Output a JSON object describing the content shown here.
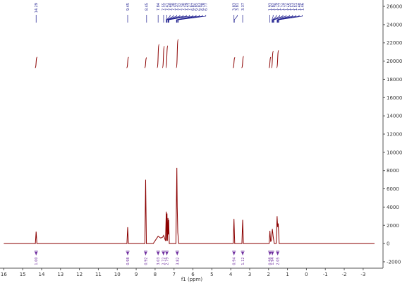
{
  "chart_data": {
    "type": "line",
    "xlabel": "f1 (ppm)",
    "xlim": [
      16.2,
      -4.05
    ],
    "xticks": [
      16,
      15,
      14,
      13,
      12,
      11,
      10,
      9,
      8,
      7,
      6,
      5,
      4,
      3,
      2,
      1,
      0,
      -1,
      -2,
      -3
    ],
    "ylim": [
      -2700,
      26700
    ],
    "yticks": [
      -2000,
      0,
      2000,
      4000,
      6000,
      8000,
      10000,
      12000,
      14000,
      16000,
      18000,
      20000,
      22000,
      24000,
      26000
    ],
    "series": [
      {
        "color": "#8b0000",
        "x": [
          16.0,
          14.33,
          14.29,
          14.25,
          9.49,
          9.45,
          9.41,
          8.54,
          8.5,
          8.46,
          8.1,
          7.84,
          7.7,
          7.6,
          7.55,
          7.45,
          7.41,
          7.39,
          7.37,
          7.35,
          7.32,
          7.3,
          7.28,
          7.25,
          6.9,
          6.85,
          6.83,
          6.8,
          6.75,
          3.87,
          3.83,
          3.79,
          3.41,
          3.37,
          3.33,
          1.97,
          1.93,
          1.89,
          1.85,
          1.8,
          1.76,
          1.7,
          1.6,
          1.55,
          1.52,
          1.49,
          1.44,
          -3.6
        ],
        "values": [
          0,
          0,
          1300,
          0,
          0,
          1800,
          0,
          0,
          7000,
          0,
          0,
          800,
          600,
          700,
          900,
          300,
          3500,
          300,
          3300,
          300,
          2800,
          1000,
          2600,
          0,
          0,
          8300,
          4000,
          1200,
          0,
          0,
          2700,
          0,
          0,
          2600,
          0,
          0,
          1400,
          200,
          400,
          1600,
          800,
          0,
          0,
          3000,
          1800,
          2200,
          0,
          0
        ]
      }
    ],
    "peak_labels": [
      14.29,
      9.45,
      8.45,
      7.84,
      7.55,
      7.41,
      {
        "value": 7.4,
        "label": "7.40"
      },
      7.38,
      7.37,
      7.32,
      {
        "value": 7.3,
        "label": "7.30"
      },
      7.29,
      7.27,
      6.87,
      6.85,
      6.83,
      6.78,
      6.77,
      3.83,
      3.81,
      3.37,
      1.93,
      1.82,
      1.79,
      1.77,
      1.74,
      1.72,
      1.55,
      1.53,
      1.51,
      1.48,
      1.46
    ],
    "integrals": {
      "color": "#7030a0",
      "x": [
        14.29,
        9.45,
        8.5,
        7.84,
        7.56,
        7.38,
        6.83,
        3.83,
        3.37,
        1.93,
        1.8,
        1.52
      ],
      "values": [
        1.0,
        0.98,
        0.92,
        3.03,
        2.72,
        2.79,
        3.82,
        0.94,
        1.12,
        0.98,
        1.94,
        2.05
      ],
      "value_labels": [
        "1.00",
        "0.98",
        "0.92",
        "3.03",
        "2.72",
        "2.79",
        "3.82",
        "0.94",
        "1.12",
        "0.98",
        "1.94",
        "2.05"
      ]
    }
  }
}
